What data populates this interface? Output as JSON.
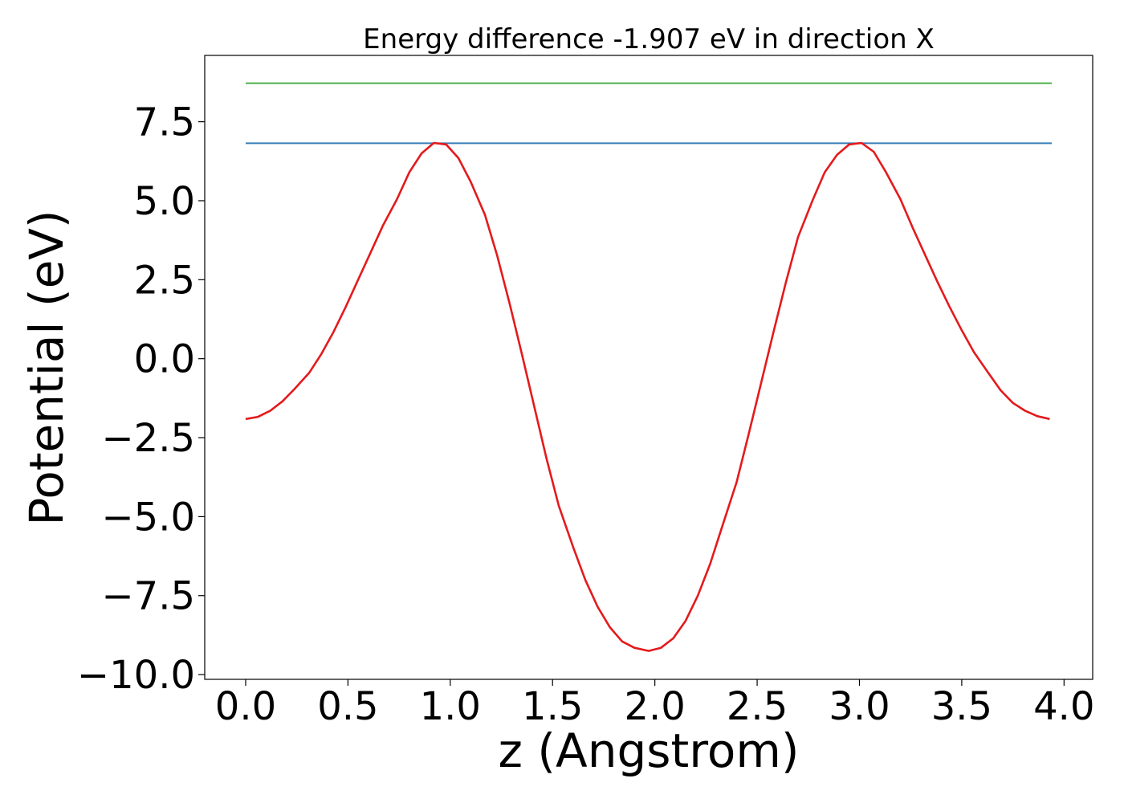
{
  "chart_data": {
    "type": "line",
    "title": "Energy difference -1.907 eV in direction X",
    "xlabel": "z (Angstrom)",
    "ylabel": "Potential (eV)",
    "xlim": [
      -0.2,
      4.14
    ],
    "ylim": [
      -10.15,
      9.6
    ],
    "xticks": [
      0.0,
      0.5,
      1.0,
      1.5,
      2.0,
      2.5,
      3.0,
      3.5,
      4.0
    ],
    "xtick_labels": [
      "0.0",
      "0.5",
      "1.0",
      "1.5",
      "2.0",
      "2.5",
      "3.0",
      "3.5",
      "4.0"
    ],
    "yticks": [
      -10.0,
      -7.5,
      -5.0,
      -2.5,
      0.0,
      2.5,
      5.0,
      7.5
    ],
    "ytick_labels": [
      "−10.0",
      "−7.5",
      "−5.0",
      "−2.5",
      "0.0",
      "2.5",
      "5.0",
      "7.5"
    ],
    "grid": false,
    "series": [
      {
        "kind": "hline",
        "color": "#4daf4a",
        "x": [
          0.0,
          3.94
        ],
        "y": [
          8.72,
          8.72
        ]
      },
      {
        "kind": "hline",
        "color": "#377eb8",
        "x": [
          0.0,
          3.94
        ],
        "y": [
          6.82,
          6.82
        ]
      },
      {
        "kind": "curve",
        "color": "#e41a1c",
        "x": [
          0.0,
          0.06,
          0.12,
          0.18,
          0.24,
          0.31,
          0.37,
          0.43,
          0.49,
          0.55,
          0.61,
          0.67,
          0.74,
          0.8,
          0.86,
          0.92,
          0.98,
          1.04,
          1.1,
          1.17,
          1.23,
          1.29,
          1.35,
          1.41,
          1.47,
          1.53,
          1.6,
          1.66,
          1.72,
          1.78,
          1.84,
          1.9,
          1.97,
          2.03,
          2.09,
          2.15,
          2.21,
          2.27,
          2.33,
          2.4,
          2.46,
          2.52,
          2.58,
          2.64,
          2.7,
          2.77,
          2.83,
          2.89,
          2.95,
          3.01,
          3.07,
          3.13,
          3.2,
          3.26,
          3.32,
          3.38,
          3.44,
          3.5,
          3.56,
          3.63,
          3.69,
          3.75,
          3.81,
          3.87,
          3.93
        ],
        "y": [
          -1.91,
          -1.84,
          -1.65,
          -1.35,
          -0.95,
          -0.45,
          0.15,
          0.85,
          1.65,
          2.5,
          3.35,
          4.2,
          5.05,
          5.9,
          6.5,
          6.83,
          6.78,
          6.35,
          5.6,
          4.55,
          3.25,
          1.75,
          0.15,
          -1.5,
          -3.15,
          -4.65,
          -5.95,
          -7.0,
          -7.85,
          -8.5,
          -8.95,
          -9.15,
          -9.25,
          -9.15,
          -8.85,
          -8.3,
          -7.5,
          -6.5,
          -5.3,
          -3.9,
          -2.35,
          -0.75,
          0.85,
          2.4,
          3.85,
          5.0,
          5.9,
          6.45,
          6.78,
          6.83,
          6.55,
          5.9,
          5.05,
          4.15,
          3.3,
          2.45,
          1.65,
          0.9,
          0.2,
          -0.45,
          -1.0,
          -1.4,
          -1.65,
          -1.82,
          -1.91
        ]
      }
    ]
  }
}
